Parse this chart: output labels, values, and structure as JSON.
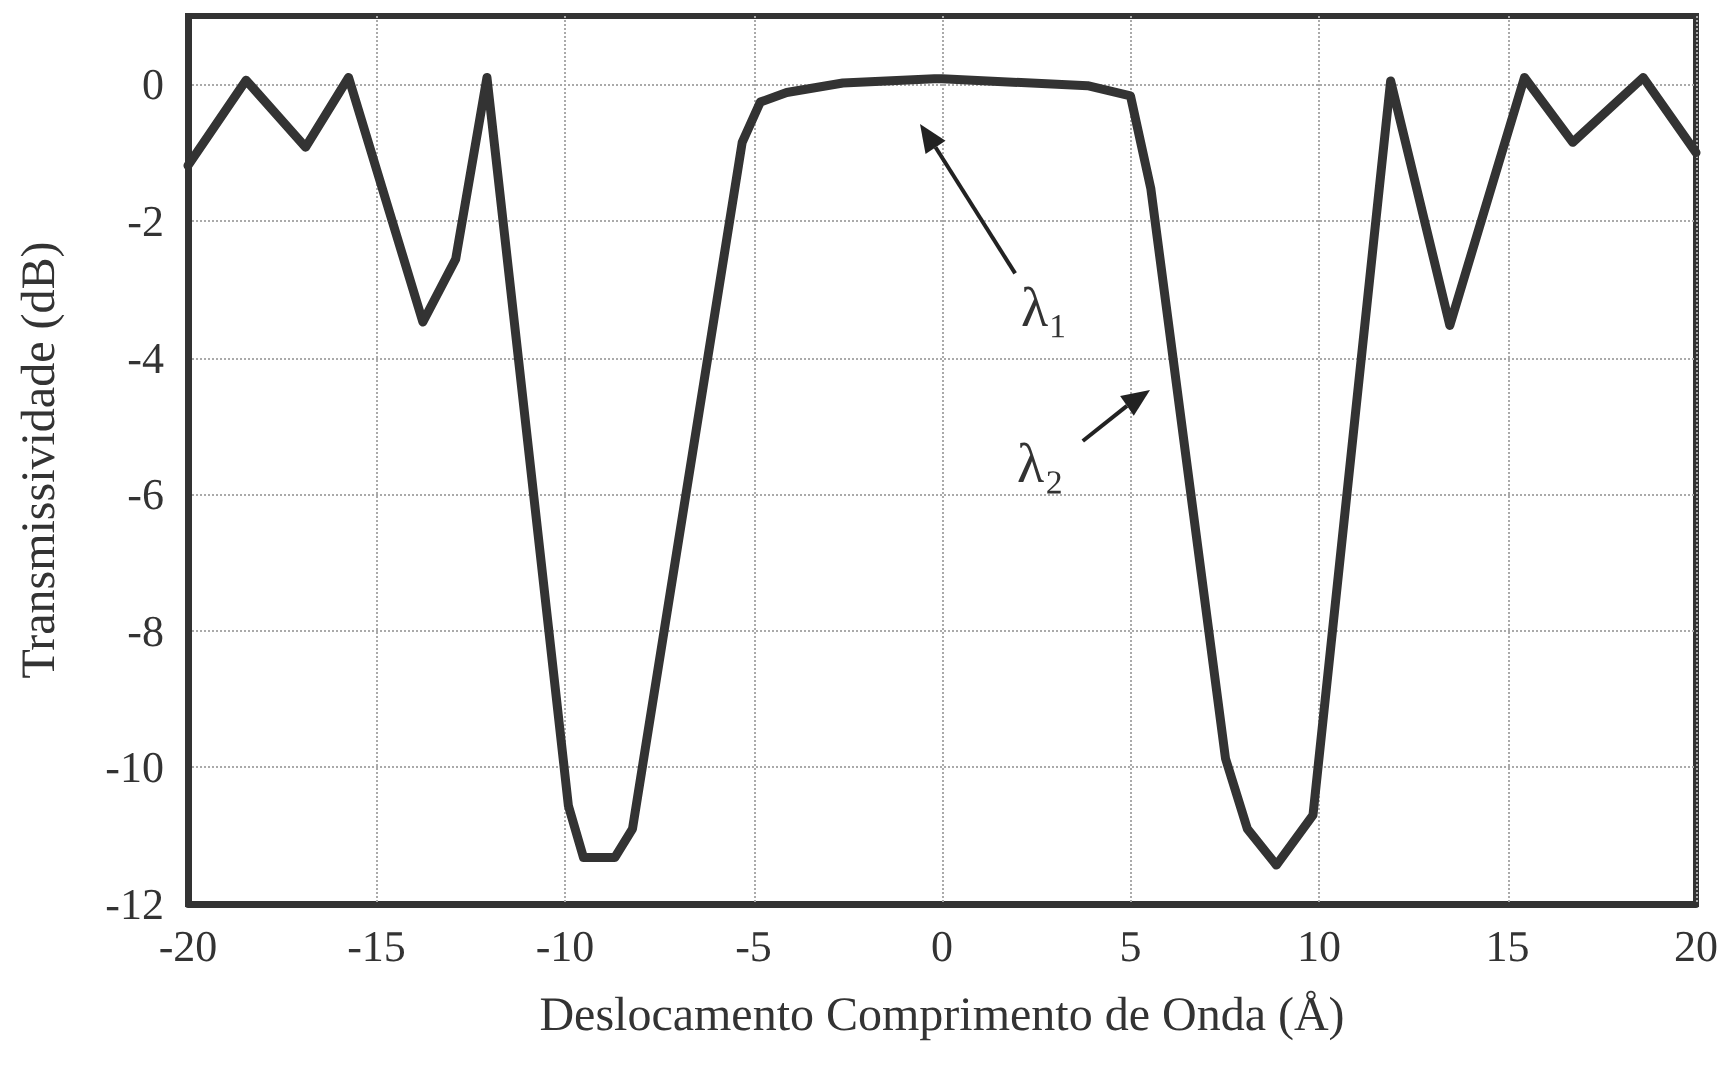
{
  "chart_data": {
    "type": "line",
    "xlabel": "Deslocamento Comprimento de Onda (Å)",
    "ylabel": "Transmissividade (dB)",
    "xlim": [
      -20,
      20
    ],
    "xticks": [
      -20,
      -15,
      -10,
      -5,
      0,
      5,
      10,
      15,
      20
    ],
    "ylim": [
      -12,
      1
    ],
    "yticks": [
      -12,
      -10,
      -8,
      -6,
      -4,
      -2,
      0
    ],
    "grid": true,
    "marker": "none",
    "line_style": "solid",
    "series": [
      {
        "color": "#333333",
        "x": [
          -20,
          -18.46,
          -16.88,
          -15.74,
          -13.77,
          -12.9,
          -12.07,
          -9.91,
          -9.51,
          -8.68,
          -8.21,
          -5.3,
          -4.82,
          -4.12,
          -2.63,
          -0.2,
          0,
          3.86,
          5,
          5.54,
          7.52,
          8.1,
          8.87,
          9.84,
          11.9,
          13.47,
          15.45,
          16.73,
          18.6,
          20
        ],
        "values": [
          -1.19,
          0.06,
          -0.92,
          0.1,
          -3.48,
          -2.56,
          0.1,
          -10.56,
          -11.32,
          -11.32,
          -10.9,
          -0.85,
          -0.26,
          -0.12,
          0.02,
          0.08,
          0.08,
          -0.02,
          -0.17,
          -1.53,
          -9.87,
          -10.9,
          -11.43,
          -10.7,
          0.05,
          -3.53,
          0.1,
          -0.85,
          0.1,
          -1.0
        ]
      }
    ],
    "annotations": [
      "λ₁",
      "λ₂"
    ]
  }
}
